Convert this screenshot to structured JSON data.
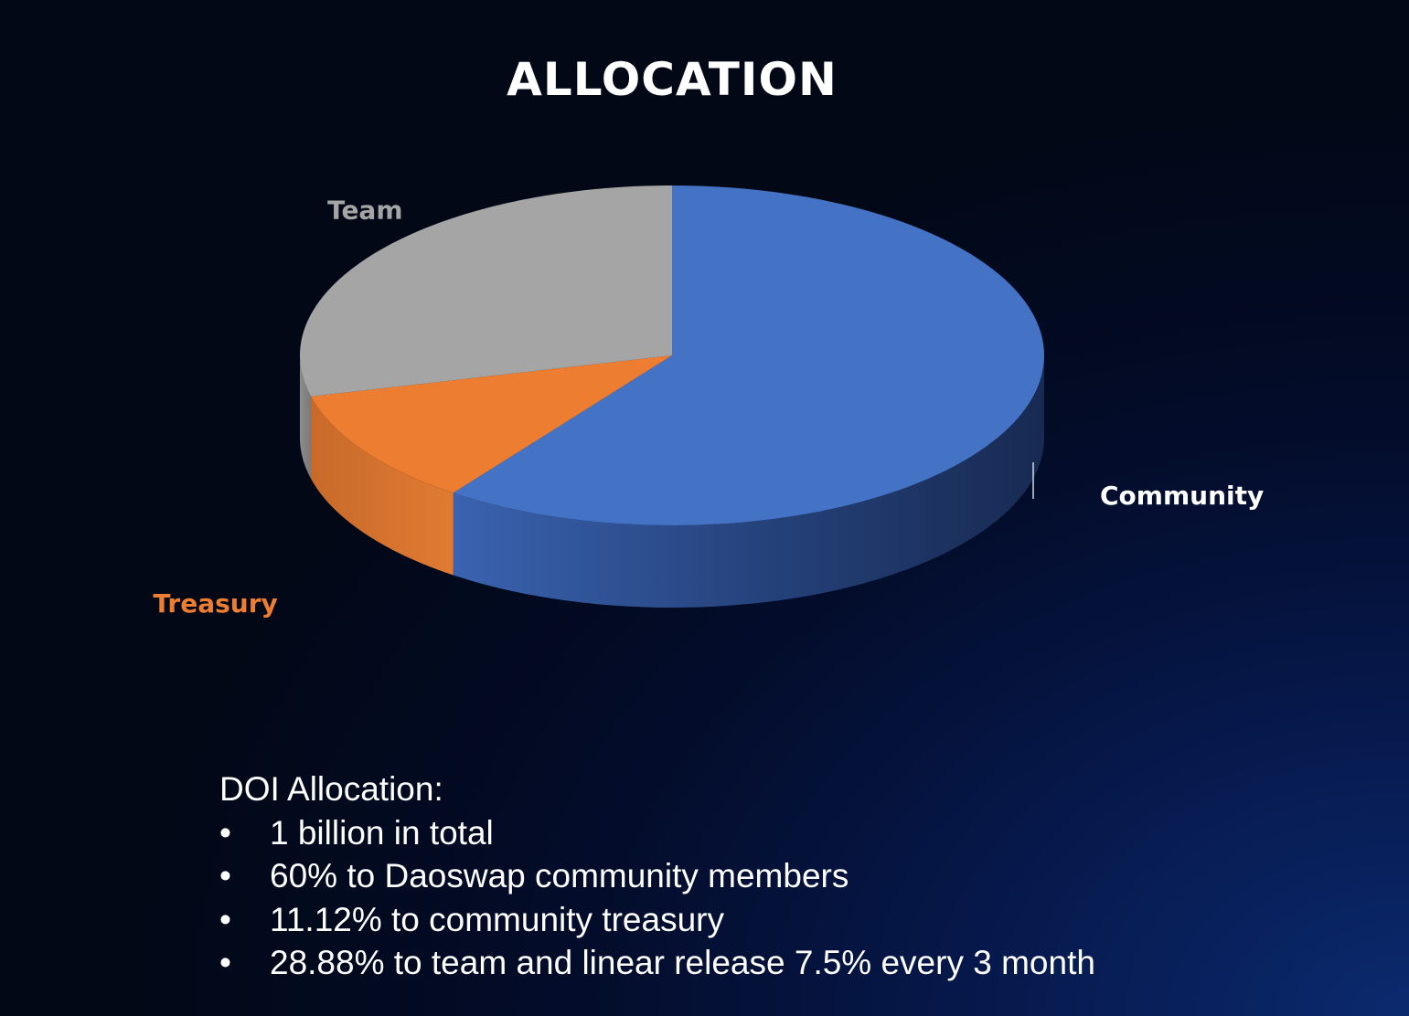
{
  "chart_data": {
    "type": "pie",
    "title": "ALLOCATION",
    "slices": [
      {
        "label": "Community",
        "value": 60,
        "color": "#4472C4"
      },
      {
        "label": "Treasury",
        "value": 11.12,
        "color": "#ED7D31"
      },
      {
        "label": "Team",
        "value": 28.88,
        "color": "#A5A5A5"
      }
    ],
    "label_colors": {
      "Community": "#FFFFFF",
      "Treasury": "#ED7D31",
      "Team": "#A5A5A5"
    },
    "style": "3d"
  },
  "notes": {
    "heading": "DOI Allocation:",
    "bullet_symbol": "•",
    "items": [
      "1 billion in total",
      "60% to Daoswap community members",
      "11.12% to community treasury",
      "28.88% to team and linear release 7.5% every 3 month"
    ]
  }
}
